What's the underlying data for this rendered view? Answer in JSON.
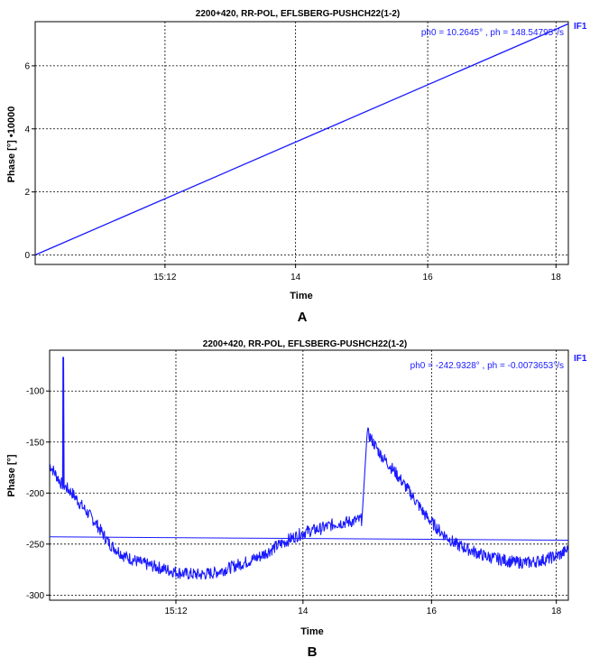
{
  "chart_data": [
    {
      "type": "line",
      "panel_label": "A",
      "title": "2200+420, RR-POL,  EFLSBERG-PUSHCH22(1-2)",
      "xlabel": "Time",
      "ylabel": "Phase [°] •10000",
      "ylim": [
        -0.3,
        7.4
      ],
      "xlim_minutes": [
        0,
        69
      ],
      "x_ticks": [
        {
          "label": "15:12",
          "minute": 16.8
        },
        {
          "label": "14",
          "minute": 33.7
        },
        {
          "label": "16",
          "minute": 50.8
        },
        {
          "label": "18",
          "minute": 67.4
        }
      ],
      "y_ticks": [
        0,
        2,
        4,
        6
      ],
      "legend": "IF1",
      "fit_text": "ph0 = 10.2645° , ph = 148.54795°/s",
      "grid": true,
      "series": [
        {
          "name": "IF1",
          "color": "#1a1aff",
          "x_minutes": [
            0,
            69
          ],
          "y": [
            0.0,
            7.33
          ]
        }
      ]
    },
    {
      "type": "line",
      "panel_label": "B",
      "title": "2200+420, RR-POL,  EFLSBERG-PUSHCH22(1-2)",
      "xlabel": "Time",
      "ylabel": "Phase [°]",
      "ylim": [
        -305,
        -60
      ],
      "xlim_minutes": [
        0,
        69
      ],
      "x_ticks": [
        {
          "label": "15:12",
          "minute": 16.8
        },
        {
          "label": "14",
          "minute": 33.7
        },
        {
          "label": "16",
          "minute": 50.8
        },
        {
          "label": "18",
          "minute": 67.4
        }
      ],
      "y_ticks": [
        -100,
        -150,
        -200,
        -250,
        -300
      ],
      "legend": "IF1",
      "fit_text": "ph0 = -242.9328° , ph = -0.0073653°/s",
      "grid": true,
      "series": [
        {
          "name": "IF1",
          "color": "#1a1aff",
          "x_minutes": [
            0,
            1.5,
            3,
            4,
            6,
            8,
            10,
            12,
            14,
            16,
            18,
            20,
            22,
            24,
            26,
            28,
            30,
            32,
            34,
            36,
            38,
            40,
            41.5,
            42.2,
            44,
            46,
            48,
            50,
            52,
            54,
            56,
            58,
            60,
            62,
            64,
            66,
            68,
            69
          ],
          "y": [
            -172,
            -190,
            -200,
            -210,
            -228,
            -250,
            -262,
            -268,
            -272,
            -276,
            -279,
            -280,
            -278,
            -273,
            -268,
            -262,
            -253,
            -245,
            -238,
            -235,
            -230,
            -228,
            -226,
            -140,
            -162,
            -180,
            -200,
            -222,
            -238,
            -250,
            -256,
            -262,
            -265,
            -268,
            -268,
            -265,
            -260,
            -255
          ],
          "spike": {
            "minute": 1.8,
            "value": -67
          },
          "fit_line": {
            "x_minutes": [
              0,
              69
            ],
            "y": [
              -242.9,
              -246.2
            ]
          }
        }
      ]
    }
  ]
}
